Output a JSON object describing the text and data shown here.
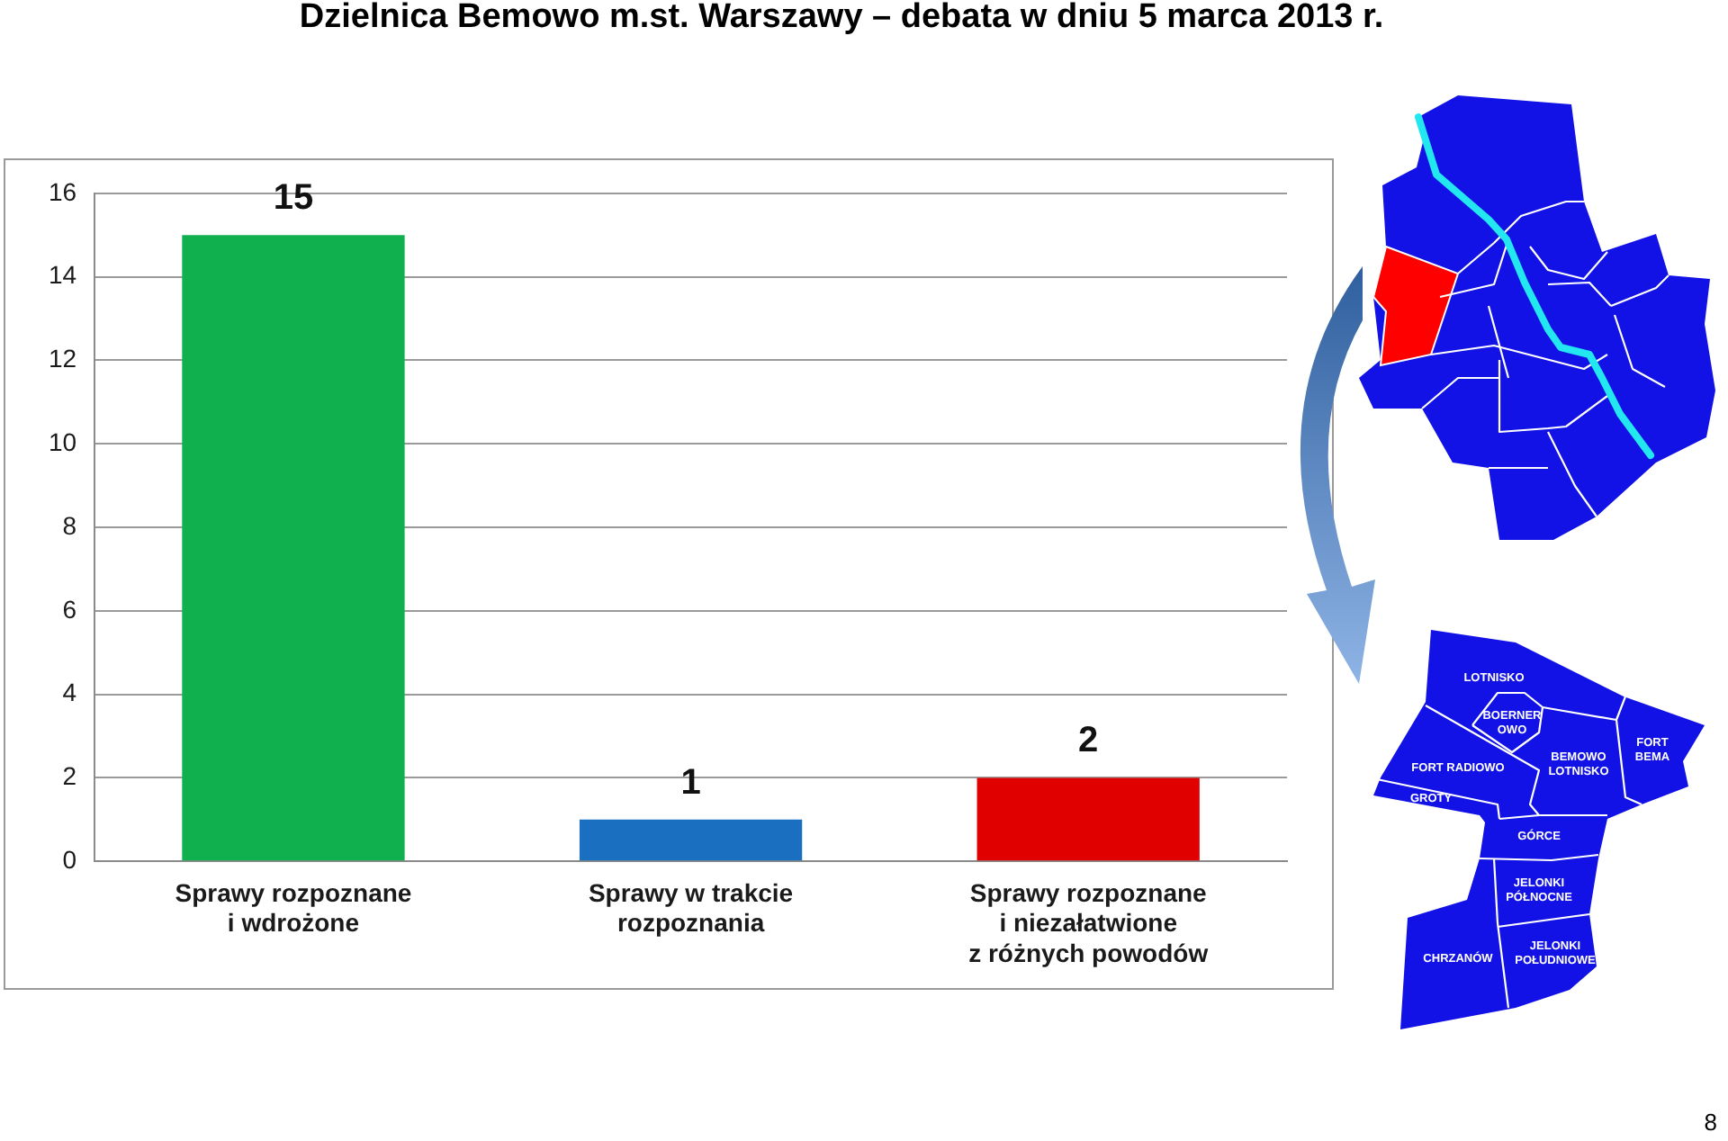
{
  "chart_data": {
    "type": "bar",
    "title": "Dzielnica Bemowo m.st. Warszawy – debata w dniu 5 marca 2013 r.",
    "categories": [
      "Sprawy rozpoznane i wdrożone",
      "Sprawy w trakcie rozpoznania",
      "Sprawy rozpoznane i niezałatwione z różnych powodów"
    ],
    "values": [
      15,
      1,
      2
    ],
    "colors": [
      "#10b04f",
      "#1a6fc0",
      "#e00000"
    ],
    "ylim": [
      0,
      16
    ],
    "yticks": [
      0,
      2,
      4,
      6,
      8,
      10,
      12,
      14,
      16
    ],
    "grid": "y",
    "data_labels": true,
    "annotations": [
      "LOTNISKO",
      "BOERNER OWO",
      "FORT RADIOWO",
      "BEMOWO LOTNISKO",
      "FORT BEMA",
      "GROTY",
      "GÓRCE",
      "JELONKI PÓŁNOCNE",
      "CHRZANÓW",
      "JELONKI POŁUDNIOWE",
      "8"
    ]
  }
}
